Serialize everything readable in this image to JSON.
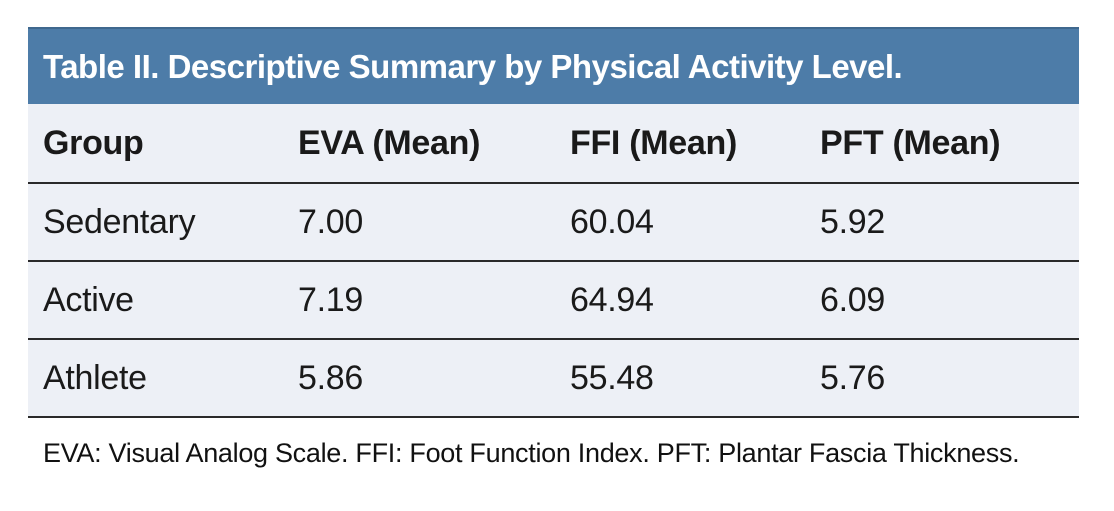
{
  "table": {
    "title": "Table II. Descriptive Summary by Physical Activity Level.",
    "columns": [
      "Group",
      "EVA (Mean)",
      "FFI (Mean)",
      "PFT (Mean)"
    ],
    "rows": [
      [
        "Sedentary",
        "7.00",
        "60.04",
        "5.92"
      ],
      [
        "Active",
        "7.19",
        "64.94",
        "6.09"
      ],
      [
        "Athlete",
        "5.86",
        "55.48",
        "5.76"
      ]
    ],
    "footnote": "EVA: Visual Analog Scale. FFI: Foot Function Index. PFT: Plantar Fascia Thickness."
  },
  "chart_data": {
    "type": "table",
    "title": "Table II. Descriptive Summary by Physical Activity Level.",
    "categories": [
      "Sedentary",
      "Active",
      "Athlete"
    ],
    "series": [
      {
        "name": "EVA (Mean)",
        "values": [
          7.0,
          7.19,
          5.86
        ]
      },
      {
        "name": "FFI (Mean)",
        "values": [
          60.04,
          64.94,
          55.48
        ]
      },
      {
        "name": "PFT (Mean)",
        "values": [
          5.92,
          6.09,
          5.76
        ]
      }
    ],
    "footnote": "EVA: Visual Analog Scale. FFI: Foot Function Index. PFT: Plantar Fascia Thickness."
  },
  "colors": {
    "title_bar_bg": "#4d7ca8",
    "title_bar_top_edge": "#3f688e",
    "row_bg": "#edf0f6",
    "separator": "#2a2a2a",
    "title_text": "#ffffff",
    "body_text": "#1a1a1a"
  }
}
